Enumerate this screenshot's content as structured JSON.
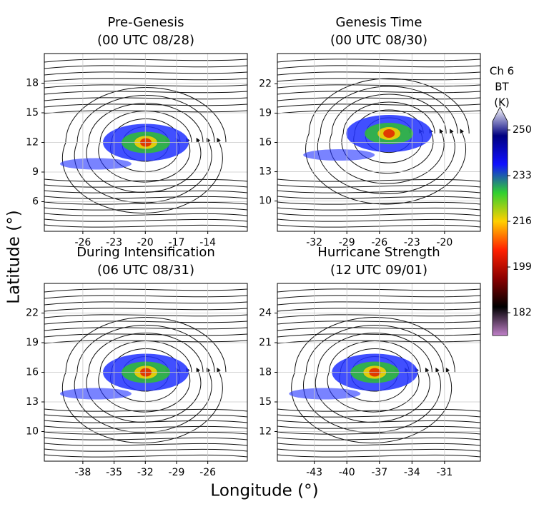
{
  "chart_data": [
    {
      "type": "map",
      "title": "Pre-Genesis",
      "subtitle": "(00 UTC 08/28)",
      "xlim": [
        -29.7,
        -10.2
      ],
      "ylim": [
        3.0,
        21.0
      ],
      "xticks": [
        -26,
        -23,
        -20,
        -17,
        -14
      ],
      "yticks": [
        6,
        9,
        12,
        15,
        18
      ],
      "grid": true
    },
    {
      "type": "map",
      "title": "Genesis Time",
      "subtitle": "(00 UTC 08/30)",
      "xlim": [
        -35.4,
        -16.7
      ],
      "ylim": [
        6.9,
        25.1
      ],
      "xticks": [
        -32,
        -29,
        -26,
        -23,
        -20
      ],
      "yticks": [
        10,
        13,
        16,
        19,
        22
      ],
      "grid": true
    },
    {
      "type": "map",
      "title": "During Intensification",
      "subtitle": "(06 UTC 08/31)",
      "xlim": [
        -41.7,
        -22.2
      ],
      "ylim": [
        7.0,
        25.0
      ],
      "xticks": [
        -38,
        -35,
        -32,
        -29,
        -26
      ],
      "yticks": [
        10,
        13,
        16,
        19,
        22
      ],
      "grid": true
    },
    {
      "type": "map",
      "title": "Hurricane Strength",
      "subtitle": "(12 UTC 09/01)",
      "xlim": [
        -46.4,
        -27.7
      ],
      "ylim": [
        9.0,
        27.0
      ],
      "xticks": [
        -43,
        -40,
        -37,
        -34,
        -31
      ],
      "yticks": [
        12,
        15,
        18,
        21,
        24
      ],
      "grid": true
    }
  ],
  "xlabel": "Longitude (°)",
  "ylabel": "Latitude (°)",
  "colorbar": {
    "label_lines": [
      "Ch 6",
      "BT",
      "(K)"
    ],
    "lim": [
      173.5,
      253.2
    ],
    "ticks": [
      182,
      199,
      216,
      233,
      250
    ],
    "colors": [
      "#c080c8",
      "#000000",
      "#8b0000",
      "#ff2000",
      "#ffd000",
      "#30d030",
      "#1010ff",
      "#000080",
      "#ffffff"
    ]
  }
}
